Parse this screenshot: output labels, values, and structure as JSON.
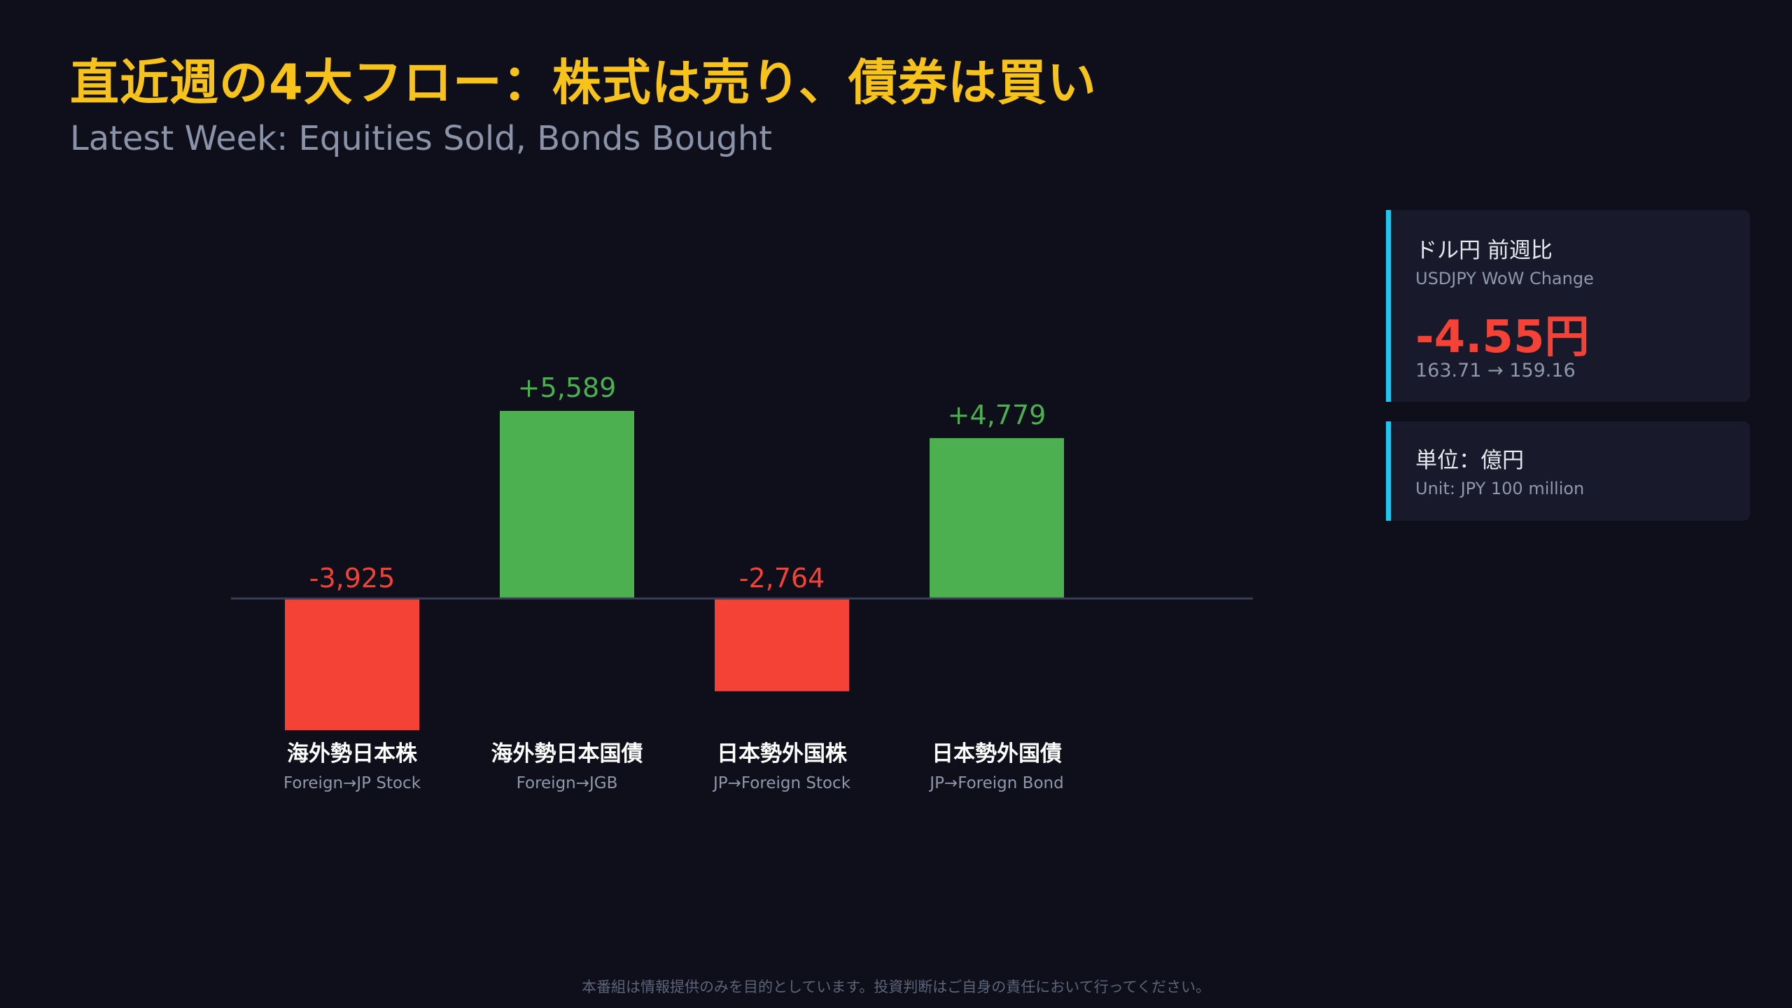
{
  "header": {
    "title": "直近週の4大フロー：株式は売り、債券は買い",
    "subtitle": "Latest Week: Equities Sold, Bonds Bought"
  },
  "chart_data": {
    "type": "bar",
    "title": "直近週の4大フロー：株式は売り、債券は買い",
    "subtitle": "Latest Week: Equities Sold, Bonds Bought",
    "categories": [
      "海外勢日本株",
      "海外勢日本国債",
      "日本勢外国株",
      "日本勢外国債"
    ],
    "categories_en": [
      "Foreign→JP Stock",
      "Foreign→JGB",
      "JP→Foreign Stock",
      "JP→Foreign Bond"
    ],
    "values": [
      -3925,
      5589,
      -2764,
      4779
    ],
    "value_labels": [
      "-3,925",
      "+5,589",
      "-2,764",
      "+4,779"
    ],
    "unit": "億円",
    "ylim": [
      -6000,
      6000
    ],
    "grid": false,
    "legend": "none",
    "colors": {
      "positive": "#4caf50",
      "negative": "#f44336",
      "baseline": "#3a3d55"
    }
  },
  "cards": {
    "usdjpy": {
      "title_jp": "ドル円 前週比",
      "title_en": "USDJPY WoW Change",
      "value": "-4.55円",
      "range": "163.71 → 159.16"
    },
    "unit": {
      "title_jp": "単位：億円",
      "title_en": "Unit: JPY 100 million"
    }
  },
  "footer": {
    "disclaimer": "本番組は情報提供のみを目的としています。投資判断はご自身の責任において行ってください。"
  },
  "colors": {
    "background": "#0e0f1b",
    "title": "#f7c21a",
    "accent": "#1fc6ee"
  }
}
